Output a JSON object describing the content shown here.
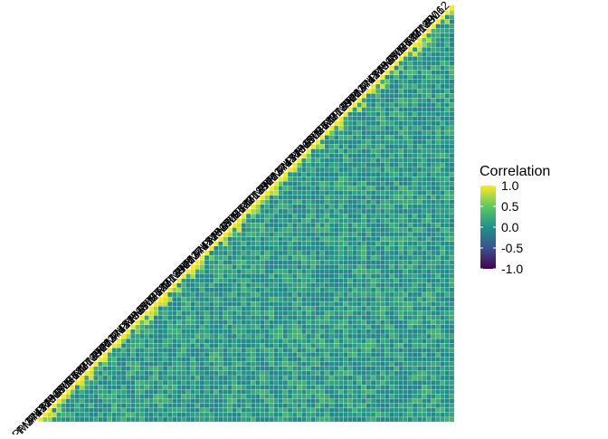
{
  "chart_data": {
    "type": "heatmap",
    "shape": "lower-triangle",
    "n_variables": 90,
    "title": "",
    "xlabel": "",
    "ylabel": "",
    "color_scale": {
      "name": "viridis",
      "range": [
        -1.0,
        1.0
      ],
      "stops": [
        "#440154",
        "#3b528b",
        "#21908c",
        "#5dc863",
        "#fde725"
      ]
    },
    "legend": {
      "title": "Correlation",
      "position": "right",
      "ticks": [
        {
          "value": 1.0,
          "label": "1.0"
        },
        {
          "value": 0.5,
          "label": "0.5"
        },
        {
          "value": 0.0,
          "label": "0.0"
        },
        {
          "value": -0.5,
          "label": "-0.5"
        },
        {
          "value": -1.0,
          "label": "-1.0"
        }
      ]
    },
    "diagonal_value": 1.0,
    "typical_offdiagonal_range": [
      -0.1,
      0.35
    ],
    "variable_labels_sample": [
      "PM37",
      "PM44",
      "PM3",
      "PL21",
      "PM9",
      "PM56",
      "PM13",
      "PM80",
      "PL5",
      "PM27",
      "PM62",
      "PL48",
      "PM71",
      "PM18",
      "PL33",
      "PM90",
      "PM6",
      "PL12"
    ],
    "grid_lines": false
  }
}
